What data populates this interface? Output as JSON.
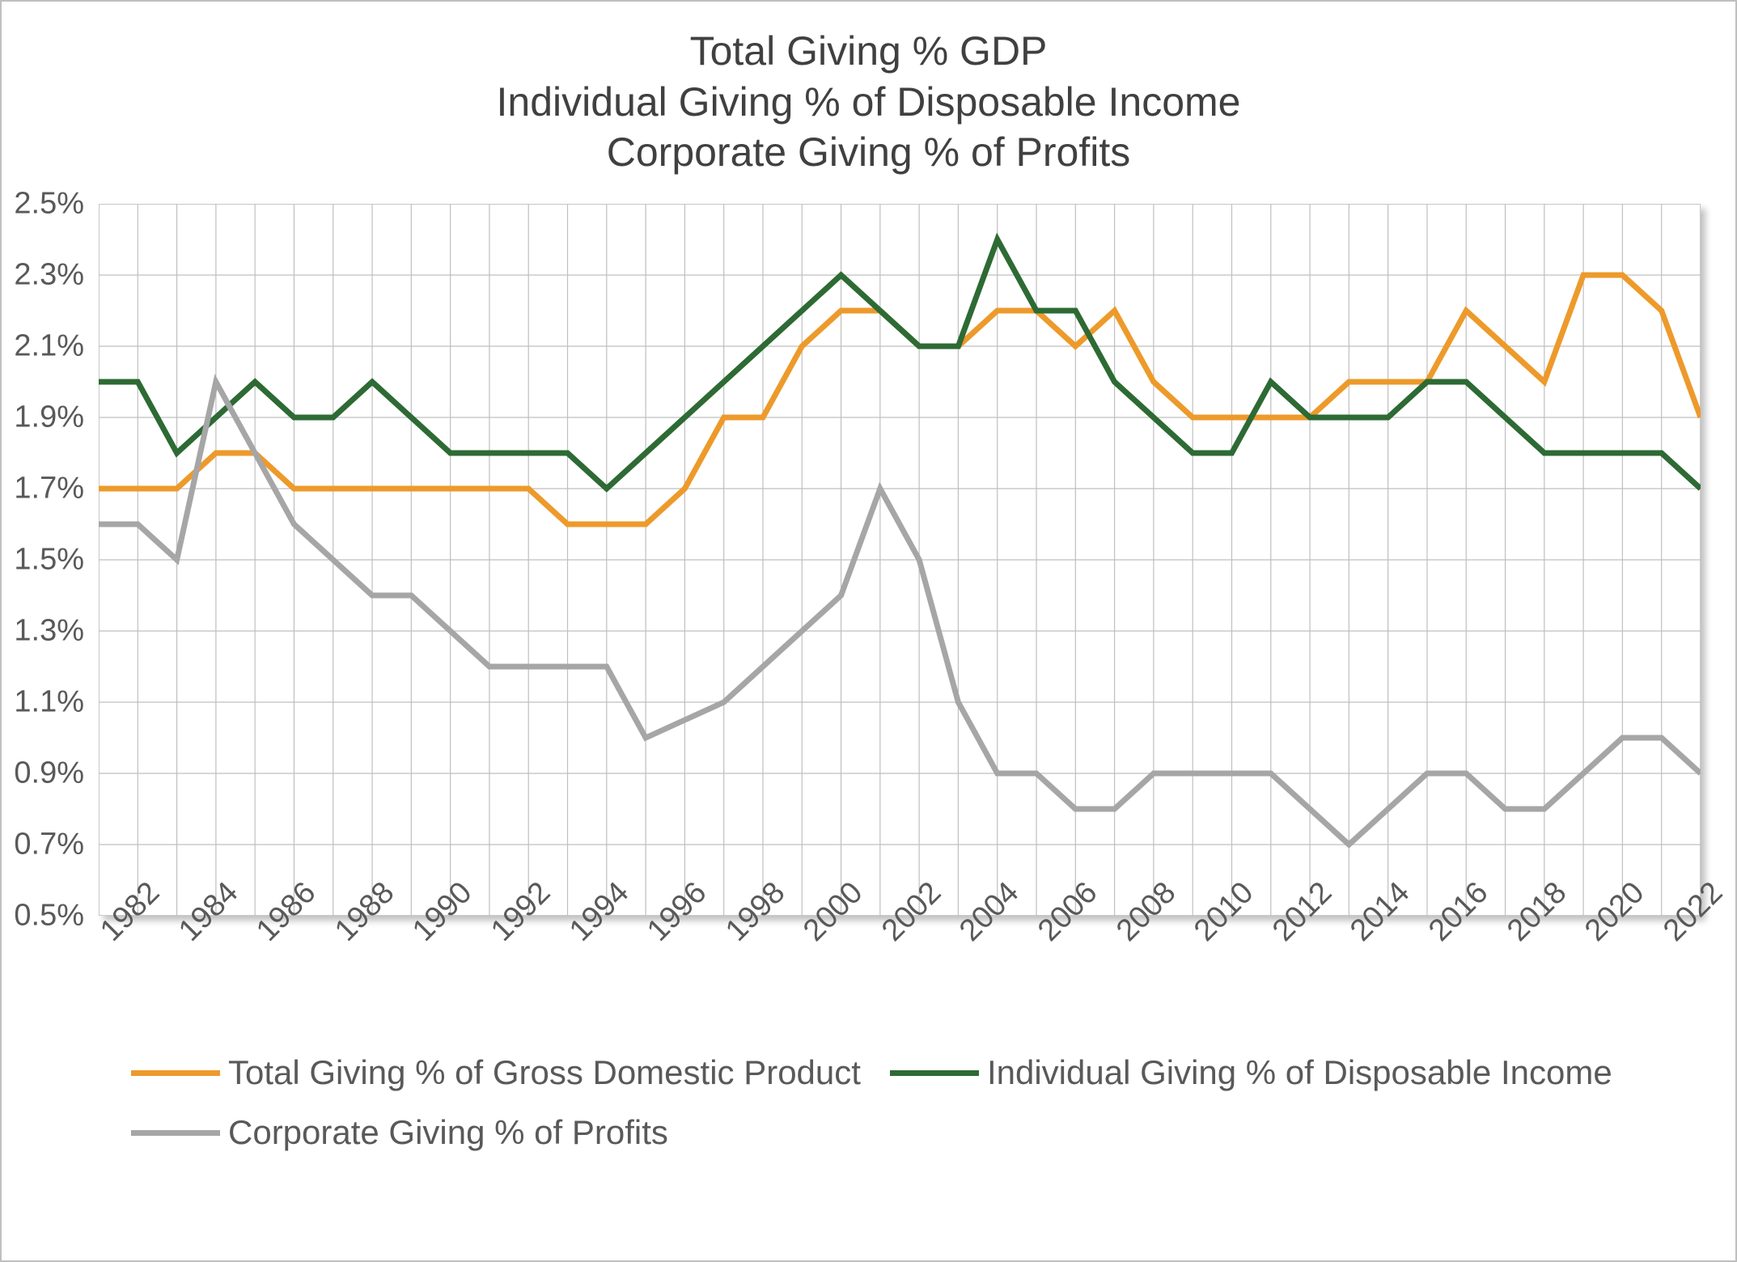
{
  "chart": {
    "type": "line",
    "title_lines": [
      "Total Giving % GDP",
      "Individual Giving % of Disposable Income",
      "Corporate Giving % of Profits"
    ],
    "title_color": "#404040",
    "title_fontsize": 50,
    "background_color": "#ffffff",
    "outer_border_color": "#bfbfbf",
    "plot_shadow": true,
    "grid_color": "#bfbfbf",
    "grid_line_width": 1.2,
    "axis_label_color": "#595959",
    "axis_label_fontsize": 38,
    "legend_fontsize": 42,
    "legend_color": "#595959",
    "line_width": 7,
    "x": {
      "min": 1982,
      "max": 2023,
      "gridlines_every": 1,
      "tick_labels": [
        "1982",
        "1984",
        "1986",
        "1988",
        "1990",
        "1992",
        "1994",
        "1996",
        "1998",
        "2000",
        "2002",
        "2004",
        "2006",
        "2008",
        "2010",
        "2012",
        "2014",
        "2016",
        "2018",
        "2020",
        "2022"
      ],
      "tick_rotation_deg": -45
    },
    "y": {
      "min": 0.5,
      "max": 2.5,
      "tick_step": 0.2,
      "tick_labels": [
        "0.5%",
        "0.7%",
        "0.9%",
        "1.1%",
        "1.3%",
        "1.5%",
        "1.7%",
        "1.9%",
        "2.1%",
        "2.3%",
        "2.5%"
      ],
      "format_suffix": "%"
    },
    "series": [
      {
        "name": "Total Giving % of Gross Domestic Product",
        "color": "#ed9a2b",
        "years": [
          1982,
          1983,
          1984,
          1985,
          1986,
          1987,
          1988,
          1989,
          1990,
          1991,
          1992,
          1993,
          1994,
          1995,
          1996,
          1997,
          1998,
          1999,
          2000,
          2001,
          2002,
          2003,
          2004,
          2005,
          2006,
          2007,
          2008,
          2009,
          2010,
          2011,
          2012,
          2013,
          2014,
          2015,
          2016,
          2017,
          2018,
          2019,
          2020,
          2021,
          2022,
          2023
        ],
        "values": [
          1.7,
          1.7,
          1.7,
          1.8,
          1.8,
          1.7,
          1.7,
          1.7,
          1.7,
          1.7,
          1.7,
          1.7,
          1.6,
          1.6,
          1.6,
          1.7,
          1.9,
          1.9,
          2.1,
          2.2,
          2.2,
          2.1,
          2.1,
          2.2,
          2.2,
          2.1,
          2.2,
          2.0,
          1.9,
          1.9,
          1.9,
          1.9,
          2.0,
          2.0,
          2.0,
          2.2,
          2.1,
          2.0,
          2.3,
          2.3,
          2.2,
          1.9
        ]
      },
      {
        "name": "Individual Giving % of Disposable Income",
        "color": "#2d6a34",
        "years": [
          1982,
          1983,
          1984,
          1985,
          1986,
          1987,
          1988,
          1989,
          1990,
          1991,
          1992,
          1993,
          1994,
          1995,
          1996,
          1997,
          1998,
          1999,
          2000,
          2001,
          2002,
          2003,
          2004,
          2005,
          2006,
          2007,
          2008,
          2009,
          2010,
          2011,
          2012,
          2013,
          2014,
          2015,
          2016,
          2017,
          2018,
          2019,
          2020,
          2021,
          2022,
          2023
        ],
        "values": [
          2.0,
          2.0,
          1.8,
          1.9,
          2.0,
          1.9,
          1.9,
          2.0,
          1.9,
          1.8,
          1.8,
          1.8,
          1.8,
          1.7,
          1.8,
          1.9,
          2.0,
          2.1,
          2.2,
          2.3,
          2.2,
          2.1,
          2.1,
          2.4,
          2.2,
          2.2,
          2.0,
          1.9,
          1.8,
          1.8,
          2.0,
          1.9,
          1.9,
          1.9,
          2.0,
          2.0,
          1.9,
          1.8,
          1.8,
          1.8,
          1.8,
          1.7
        ]
      },
      {
        "name": "Corporate Giving % of Profits",
        "color": "#a6a6a6",
        "years": [
          1982,
          1983,
          1984,
          1985,
          1986,
          1987,
          1988,
          1989,
          1990,
          1991,
          1992,
          1993,
          1994,
          1995,
          1996,
          1997,
          1998,
          1999,
          2000,
          2001,
          2002,
          2003,
          2004,
          2005,
          2006,
          2007,
          2008,
          2009,
          2010,
          2011,
          2012,
          2013,
          2014,
          2015,
          2016,
          2017,
          2018,
          2019,
          2020,
          2021,
          2022,
          2023
        ],
        "values": [
          1.6,
          1.6,
          1.5,
          2.0,
          1.8,
          1.6,
          1.5,
          1.4,
          1.4,
          1.3,
          1.2,
          1.2,
          1.2,
          1.2,
          1.0,
          1.05,
          1.1,
          1.2,
          1.3,
          1.4,
          1.7,
          1.5,
          1.1,
          0.9,
          0.9,
          0.8,
          0.8,
          0.9,
          0.9,
          0.9,
          0.9,
          0.8,
          0.7,
          0.8,
          0.9,
          0.9,
          0.8,
          0.8,
          0.9,
          1.0,
          1.0,
          0.9
        ]
      }
    ]
  }
}
